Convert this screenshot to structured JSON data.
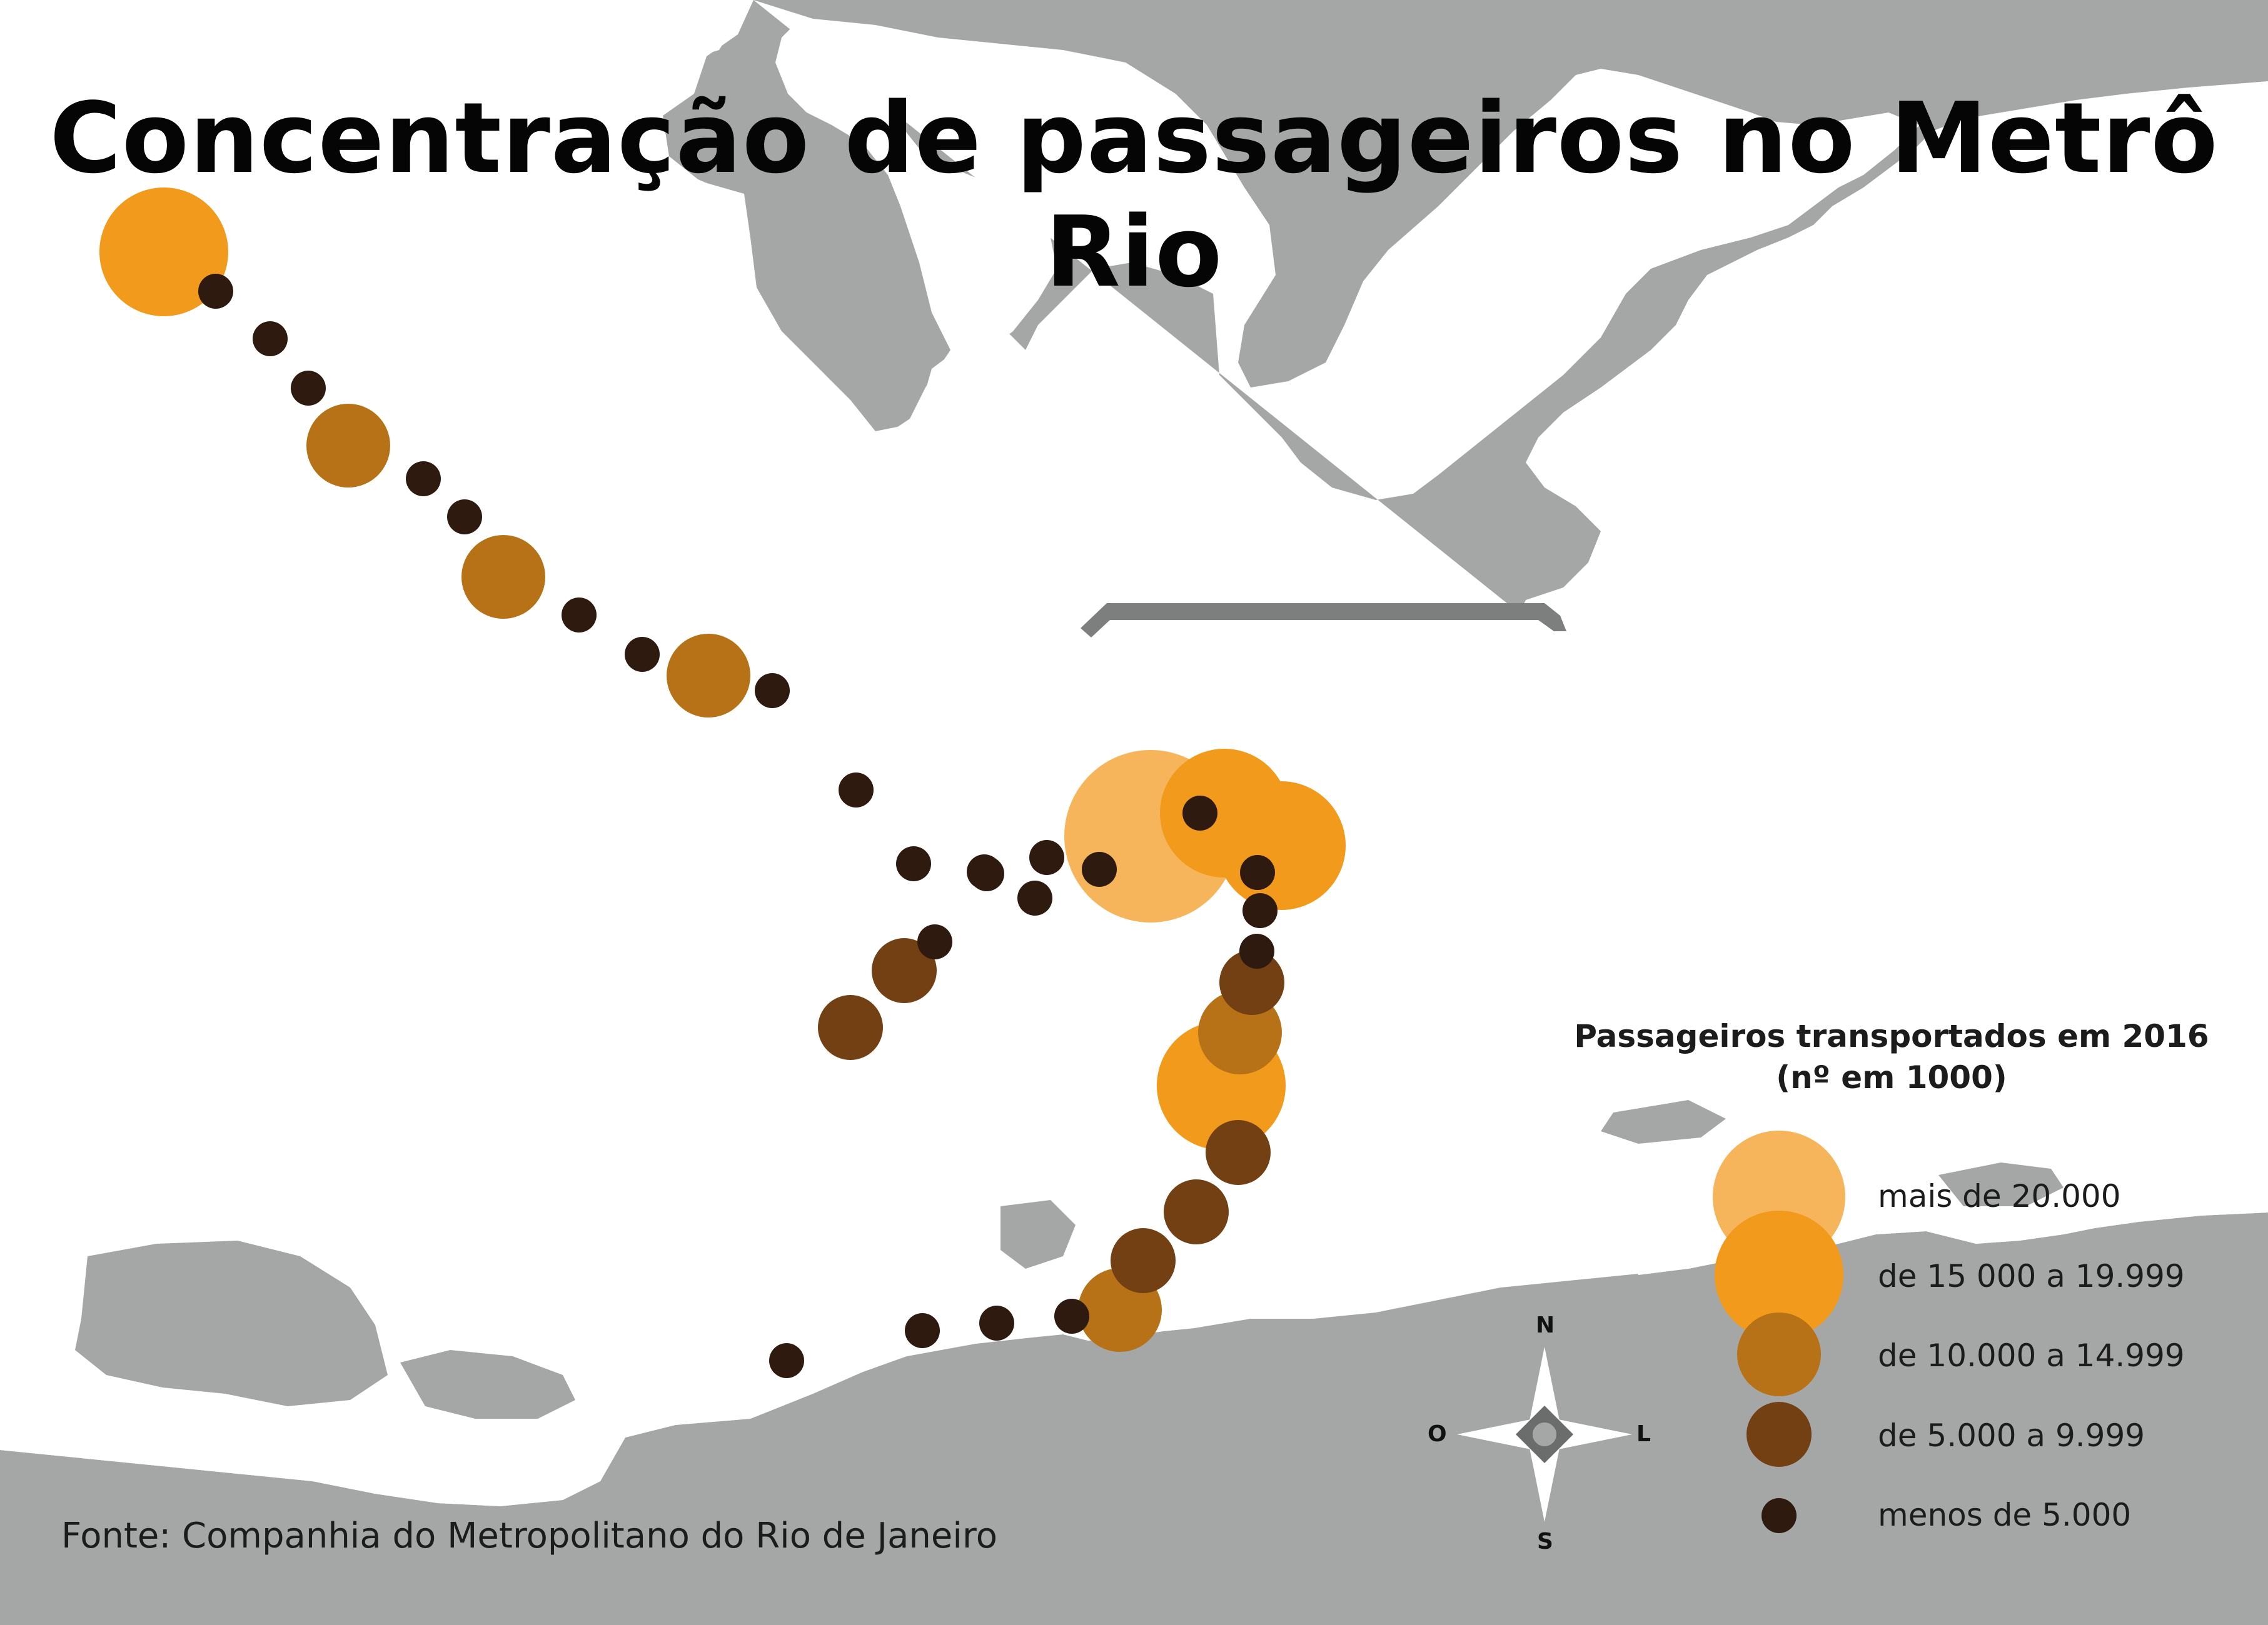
{
  "title": "Concentração de passageiros no Metrô Rio",
  "source": "Fonte: Companhia do Metropolitano do Rio de Janeiro",
  "legend": {
    "title_line1": "Passageiros transportados em 2016",
    "title_line2": "(nº em 1000)",
    "classes": [
      {
        "id": "c5",
        "label": "mais de 20.000",
        "color": "#f7b55b"
      },
      {
        "id": "c4",
        "label": "de 15 000 a 19.999",
        "color": "#f19a1c"
      },
      {
        "id": "c3",
        "label": "de 10.000 a 14.999",
        "color": "#b77218"
      },
      {
        "id": "c2",
        "label": "de 5.000 a 9.999",
        "color": "#734013"
      },
      {
        "id": "c1",
        "label": "menos de 5.000",
        "color": "#2e1a0e"
      }
    ]
  },
  "compass": {
    "north": "N",
    "south": "S",
    "east": "L",
    "west": "O"
  },
  "colors": {
    "water": "#a5a7a7",
    "land": "#ffffff",
    "bridge": "#7d7e7e"
  },
  "stations": [
    {
      "cls": "c4"
    },
    {
      "cls": "c1"
    },
    {
      "cls": "c1"
    },
    {
      "cls": "c1"
    },
    {
      "cls": "c3"
    },
    {
      "cls": "c1"
    },
    {
      "cls": "c1"
    },
    {
      "cls": "c3"
    },
    {
      "cls": "c1"
    },
    {
      "cls": "c1"
    },
    {
      "cls": "c3"
    },
    {
      "cls": "c1"
    },
    {
      "cls": "c1"
    },
    {
      "cls": "c1"
    },
    {
      "cls": "c1"
    },
    {
      "cls": "c1"
    },
    {
      "cls": "c1"
    },
    {
      "cls": "c1"
    },
    {
      "cls": "c1"
    },
    {
      "cls": "c2"
    },
    {
      "cls": "c2"
    },
    {
      "cls": "c1"
    },
    {
      "cls": "c5"
    },
    {
      "cls": "c4"
    },
    {
      "cls": "c1"
    },
    {
      "cls": "c4"
    },
    {
      "cls": "c1"
    },
    {
      "cls": "c1"
    },
    {
      "cls": "c1"
    },
    {
      "cls": "c2"
    },
    {
      "cls": "c3"
    },
    {
      "cls": "c4"
    },
    {
      "cls": "c2"
    },
    {
      "cls": "c2"
    },
    {
      "cls": "c2"
    },
    {
      "cls": "c3"
    },
    {
      "cls": "c1"
    },
    {
      "cls": "c1"
    },
    {
      "cls": "c1"
    },
    {
      "cls": "c1"
    }
  ]
}
